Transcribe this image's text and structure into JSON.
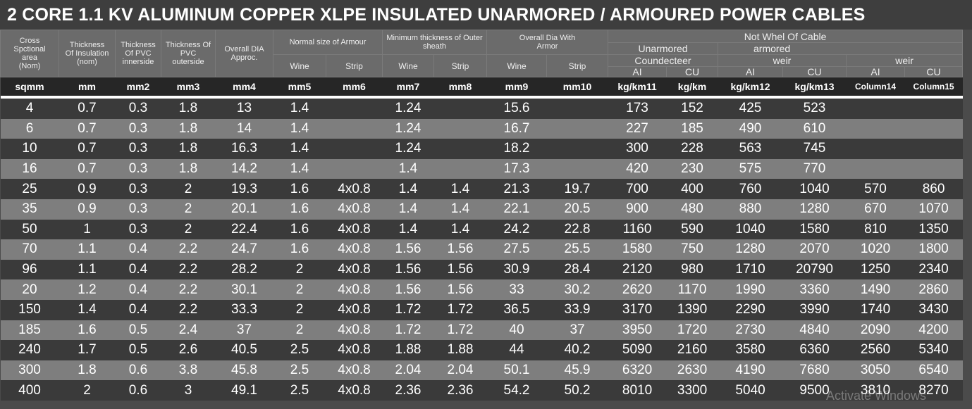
{
  "title": "2 CORE 1.1 KV ALUMINUM COPPER XLPE INSULATED UNARMORED  / ARMOURED POWER CABLES",
  "header": {
    "cross": "Cross Spctional area (Nom)",
    "insulation": "Thickness Of Insulation (nom)",
    "pvc_inner": "Thickness Of PVC innerside",
    "pvc_outer": "Thickness Of PVC outerside",
    "overall_dia": "Overall  DIA Approc.",
    "armour": "Normal size of Armour",
    "outer_sheath": "Minimum thickness of Outer sheath",
    "dia_armor": "Overall Dia With Armor",
    "wine": "Wine",
    "strip": "Strip",
    "not_whel": "Not Whel Of Cable",
    "unarmored": "Unarmored",
    "armored": "armored",
    "coundecteer": "Coundecteer",
    "weir": "weir",
    "al": "AI",
    "cu": "CU"
  },
  "units": [
    "sqmm",
    "mm",
    "mm2",
    "mm3",
    "mm4",
    "mm5",
    "mm6",
    "mm7",
    "mm8",
    "mm9",
    "mm10",
    "kg/km11",
    "kg/km",
    "kg/km12",
    "kg/km13",
    "Column14",
    "Column15"
  ],
  "rows": [
    [
      "4",
      "0.7",
      "0.3",
      "1.8",
      "13",
      "1.4",
      "",
      "1.24",
      "",
      "15.6",
      "",
      "173",
      "152",
      "425",
      "523",
      "",
      ""
    ],
    [
      "6",
      "0.7",
      "0.3",
      "1.8",
      "14",
      "1.4",
      "",
      "1.24",
      "",
      "16.7",
      "",
      "227",
      "185",
      "490",
      "610",
      "",
      ""
    ],
    [
      "10",
      "0.7",
      "0.3",
      "1.8",
      "16.3",
      "1.4",
      "",
      "1.24",
      "",
      "18.2",
      "",
      "300",
      "228",
      "563",
      "745",
      "",
      ""
    ],
    [
      "16",
      "0.7",
      "0.3",
      "1.8",
      "14.2",
      "1.4",
      "",
      "1.4",
      "",
      "17.3",
      "",
      "420",
      "230",
      "575",
      "770",
      "",
      ""
    ],
    [
      "25",
      "0.9",
      "0.3",
      "2",
      "19.3",
      "1.6",
      "4x0.8",
      "1.4",
      "1.4",
      "21.3",
      "19.7",
      "700",
      "400",
      "760",
      "1040",
      "570",
      "860"
    ],
    [
      "35",
      "0.9",
      "0.3",
      "2",
      "20.1",
      "1.6",
      "4x0.8",
      "1.4",
      "1.4",
      "22.1",
      "20.5",
      "900",
      "480",
      "880",
      "1280",
      "670",
      "1070"
    ],
    [
      "50",
      "1",
      "0.3",
      "2",
      "22.4",
      "1.6",
      "4x0.8",
      "1.4",
      "1.4",
      "24.2",
      "22.8",
      "1160",
      "590",
      "1040",
      "1580",
      "810",
      "1350"
    ],
    [
      "70",
      "1.1",
      "0.4",
      "2.2",
      "24.7",
      "1.6",
      "4x0.8",
      "1.56",
      "1.56",
      "27.5",
      "25.5",
      "1580",
      "750",
      "1280",
      "2070",
      "1020",
      "1800"
    ],
    [
      "96",
      "1.1",
      "0.4",
      "2.2",
      "28.2",
      "2",
      "4x0.8",
      "1.56",
      "1.56",
      "30.9",
      "28.4",
      "2120",
      "980",
      "1710",
      "20790",
      "1250",
      "2340"
    ],
    [
      "20",
      "1.2",
      "0.4",
      "2.2",
      "30.1",
      "2",
      "4x0.8",
      "1.56",
      "1.56",
      "33",
      "30.2",
      "2620",
      "1170",
      "1990",
      "3360",
      "1490",
      "2860"
    ],
    [
      "150",
      "1.4",
      "0.4",
      "2.2",
      "33.3",
      "2",
      "4x0.8",
      "1.72",
      "1.72",
      "36.5",
      "33.9",
      "3170",
      "1390",
      "2290",
      "3990",
      "1740",
      "3430"
    ],
    [
      "185",
      "1.6",
      "0.5",
      "2.4",
      "37",
      "2",
      "4x0.8",
      "1.72",
      "1.72",
      "40",
      "37",
      "3950",
      "1720",
      "2730",
      "4840",
      "2090",
      "4200"
    ],
    [
      "240",
      "1.7",
      "0.5",
      "2.6",
      "40.5",
      "2.5",
      "4x0.8",
      "1.88",
      "1.88",
      "44",
      "40.2",
      "5090",
      "2160",
      "3580",
      "6360",
      "2560",
      "5340"
    ],
    [
      "300",
      "1.8",
      "0.6",
      "3.8",
      "45.8",
      "2.5",
      "4x0.8",
      "2.04",
      "2.04",
      "50.1",
      "45.9",
      "6320",
      "2630",
      "4190",
      "7680",
      "3050",
      "6540"
    ],
    [
      "400",
      "2",
      "0.6",
      "3",
      "49.1",
      "2.5",
      "4x0.8",
      "2.36",
      "2.36",
      "54.2",
      "50.2",
      "8010",
      "3300",
      "5040",
      "9500",
      "3810",
      "8270"
    ]
  ],
  "watermark": "Activate Windows"
}
